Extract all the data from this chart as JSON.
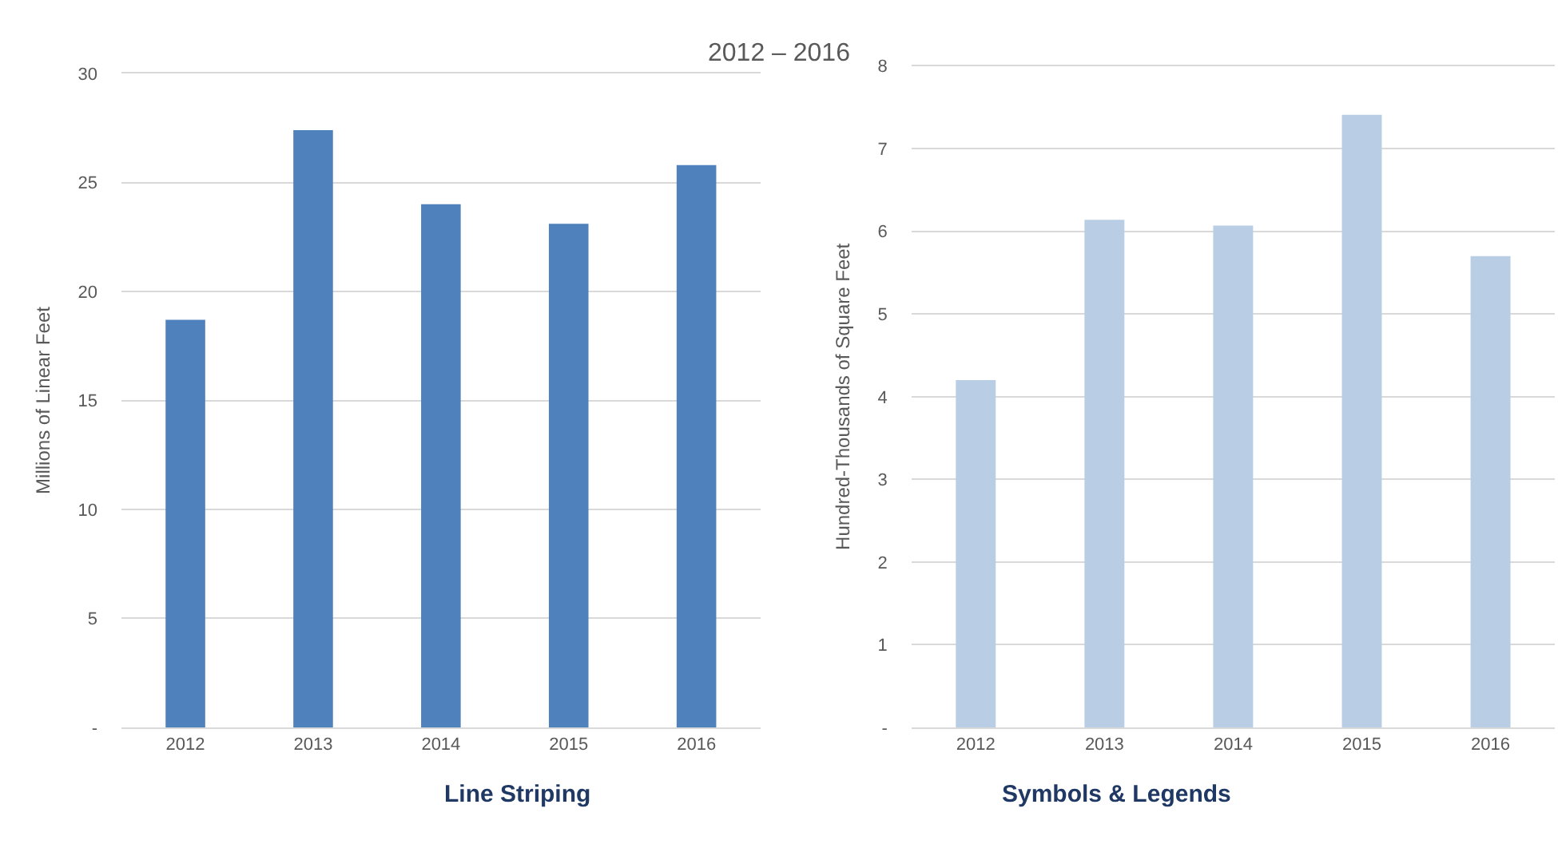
{
  "chart_data": [
    {
      "type": "bar",
      "subtitle": "2012 – 2016",
      "title": "Line Striping",
      "ylabel": "Millions of Linear Feet",
      "categories": [
        "2012",
        "2013",
        "2014",
        "2015",
        "2016"
      ],
      "series": [
        {
          "color": "#4f81bd",
          "values": [
            18.7,
            27.4,
            24.0,
            23.1,
            25.8
          ]
        }
      ],
      "ylim": [
        0,
        30
      ],
      "yticks": [
        {
          "value": 0,
          "label": "-"
        },
        5,
        10,
        15,
        20,
        25,
        30
      ],
      "grid": "y"
    },
    {
      "type": "bar",
      "title": "Symbols & Legends",
      "ylabel": "Hundred-Thousands of Square Feet",
      "categories": [
        "2012",
        "2013",
        "2014",
        "2015",
        "2016"
      ],
      "series": [
        {
          "color": "#b9cde5",
          "values": [
            4.2,
            6.14,
            6.07,
            7.41,
            5.7
          ]
        }
      ],
      "ylim": [
        0,
        8
      ],
      "yticks": [
        {
          "value": 0,
          "label": "-"
        },
        1,
        2,
        3,
        4,
        5,
        6,
        7,
        8
      ],
      "grid": "y"
    }
  ]
}
